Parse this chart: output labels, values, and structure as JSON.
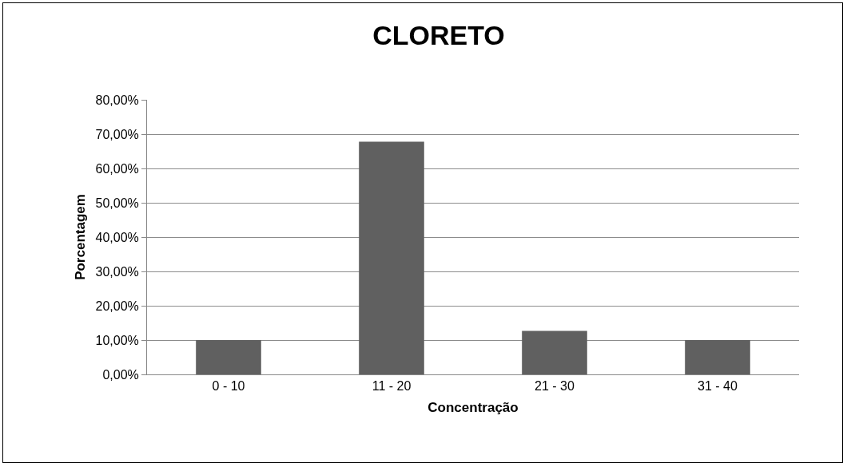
{
  "chart_data": {
    "type": "bar",
    "title": "CLORETO",
    "xlabel": "Concentração",
    "ylabel": "Porcentagem",
    "categories": [
      "0 - 10",
      "11 - 20",
      "21 - 30",
      "31 - 40"
    ],
    "values": [
      10,
      67.8,
      12.7,
      10
    ],
    "color": "#606060",
    "ylim": [
      0,
      80
    ],
    "yticks": [
      {
        "value": 0,
        "label": "0,00%"
      },
      {
        "value": 10,
        "label": "10,00%"
      },
      {
        "value": 20,
        "label": "20,00%"
      },
      {
        "value": 30,
        "label": "30,00%"
      },
      {
        "value": 40,
        "label": "40,00%"
      },
      {
        "value": 50,
        "label": "50,00%"
      },
      {
        "value": 60,
        "label": "60,00%"
      },
      {
        "value": 70,
        "label": "70,00%"
      },
      {
        "value": 80,
        "label": "80,00%"
      }
    ],
    "grid": "y"
  }
}
